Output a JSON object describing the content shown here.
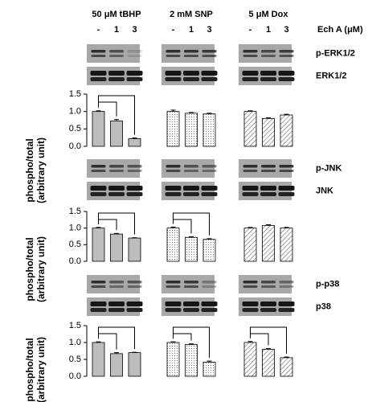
{
  "header": {
    "treatments": [
      "50 μM tBHP",
      "2 mM SNP",
      "5 μM Dox"
    ],
    "doses": [
      "-",
      "1",
      "3",
      "-",
      "1",
      "3",
      "-",
      "1",
      "3"
    ],
    "dose_label": "Ech A (μM)"
  },
  "blots": [
    {
      "phospho": "p-ERK1/2",
      "total": "ERK1/2"
    },
    {
      "phospho": "p-JNK",
      "total": "JNK"
    },
    {
      "phospho": "p-p38",
      "total": "p38"
    }
  ],
  "chart_data": [
    {
      "type": "bar",
      "y_label": [
        "phospho/total",
        "(arbitrary unit)"
      ],
      "ylim": [
        0,
        1.5
      ],
      "yticks": [
        {
          "value": 0,
          "label": "0.0"
        },
        0.5,
        {
          "value": 1,
          "label": "1.0"
        },
        1.5
      ],
      "series": [
        {
          "pattern": "solid",
          "color": "#bdbdbd",
          "significance": true,
          "values": [
            1.0,
            0.73,
            0.22
          ],
          "errors": [
            0.02,
            0.04,
            0.02
          ]
        },
        {
          "pattern": "dotted",
          "color": "#ffffff",
          "significance": false,
          "values": [
            1.0,
            0.95,
            0.93
          ],
          "errors": [
            0.04,
            0.02,
            0.02
          ]
        },
        {
          "pattern": "hatched",
          "color": "#ffffff",
          "significance": false,
          "values": [
            1.0,
            0.8,
            0.9
          ],
          "errors": [
            0.02,
            0.02,
            0.02
          ]
        }
      ]
    },
    {
      "type": "bar",
      "y_label": [
        "phospho/total",
        "(arbitrary unit)"
      ],
      "ylim": [
        0,
        1.5
      ],
      "yticks": [
        {
          "value": 0,
          "label": "0.0"
        },
        0.5,
        {
          "value": 1,
          "label": "1.0"
        },
        1.5
      ],
      "series": [
        {
          "pattern": "solid",
          "color": "#bdbdbd",
          "significance": true,
          "values": [
            1.0,
            0.82,
            0.7
          ],
          "errors": [
            0.02,
            0.02,
            0.01
          ]
        },
        {
          "pattern": "dotted",
          "color": "#ffffff",
          "significance": true,
          "values": [
            1.0,
            0.72,
            0.66
          ],
          "errors": [
            0.03,
            0.02,
            0.02
          ]
        },
        {
          "pattern": "hatched",
          "color": "#ffffff",
          "significance": false,
          "values": [
            1.0,
            1.08,
            1.0
          ],
          "errors": [
            0.02,
            0.02,
            0.02
          ]
        }
      ]
    },
    {
      "type": "bar",
      "y_label": [
        "phospho/total",
        "(arbitrary unit)"
      ],
      "ylim": [
        0,
        1.5
      ],
      "yticks": [
        {
          "value": 0,
          "label": "0.0"
        },
        0.5,
        {
          "value": 1,
          "label": "1.0"
        },
        1.5
      ],
      "series": [
        {
          "pattern": "solid",
          "color": "#bdbdbd",
          "significance": true,
          "values": [
            1.0,
            0.67,
            0.7
          ],
          "errors": [
            0.02,
            0.03,
            0.01
          ]
        },
        {
          "pattern": "dotted",
          "color": "#ffffff",
          "significance": true,
          "values": [
            1.0,
            0.94,
            0.42
          ],
          "errors": [
            0.02,
            0.02,
            0.03
          ]
        },
        {
          "pattern": "hatched",
          "color": "#ffffff",
          "significance": true,
          "values": [
            1.0,
            0.8,
            0.55
          ],
          "errors": [
            0.03,
            0.02,
            0.02
          ]
        }
      ]
    }
  ]
}
